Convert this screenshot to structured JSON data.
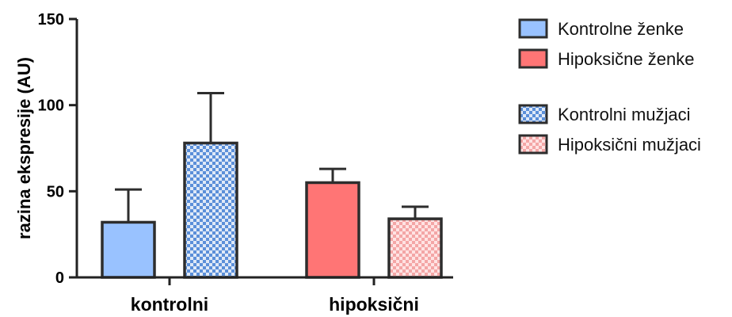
{
  "chart_data": {
    "type": "bar",
    "categories": [
      "kontrolni",
      "hipoksični"
    ],
    "ylabel": "razina ekspresije (AU)",
    "xlabel": "",
    "ylim": [
      0,
      150
    ],
    "yticks": [
      "0",
      "50",
      "100",
      "150"
    ],
    "grid": false,
    "legend_position": "right",
    "series": [
      {
        "name": "Kontrolne ženke",
        "color": "#99c2ff",
        "pattern": "solid",
        "values": [
          32,
          null
        ],
        "errors": [
          19,
          null
        ]
      },
      {
        "name": "Kontrolni mužjaci",
        "color": "#5b8fd9",
        "pattern": "checker",
        "values": [
          78,
          null
        ],
        "errors": [
          29,
          null
        ]
      },
      {
        "name": "Hipoksične ženke",
        "color": "#ff7575",
        "pattern": "solid",
        "values": [
          null,
          55
        ],
        "errors": [
          null,
          8
        ]
      },
      {
        "name": "Hipoksični mužjaci",
        "color": "#f4a6a6",
        "pattern": "checker",
        "values": [
          null,
          34
        ],
        "errors": [
          null,
          7
        ]
      }
    ]
  },
  "legend": {
    "items": [
      {
        "label": "Kontrolne ženke",
        "color": "#99c2ff",
        "pattern": "solid"
      },
      {
        "label": "Hipoksične ženke",
        "color": "#ff7575",
        "pattern": "solid"
      },
      {
        "label": "Kontrolni mužjaci",
        "color": "#5b8fd9",
        "pattern": "checker"
      },
      {
        "label": "Hipoksični mužjaci",
        "color": "#f4a6a6",
        "pattern": "checker"
      }
    ]
  }
}
